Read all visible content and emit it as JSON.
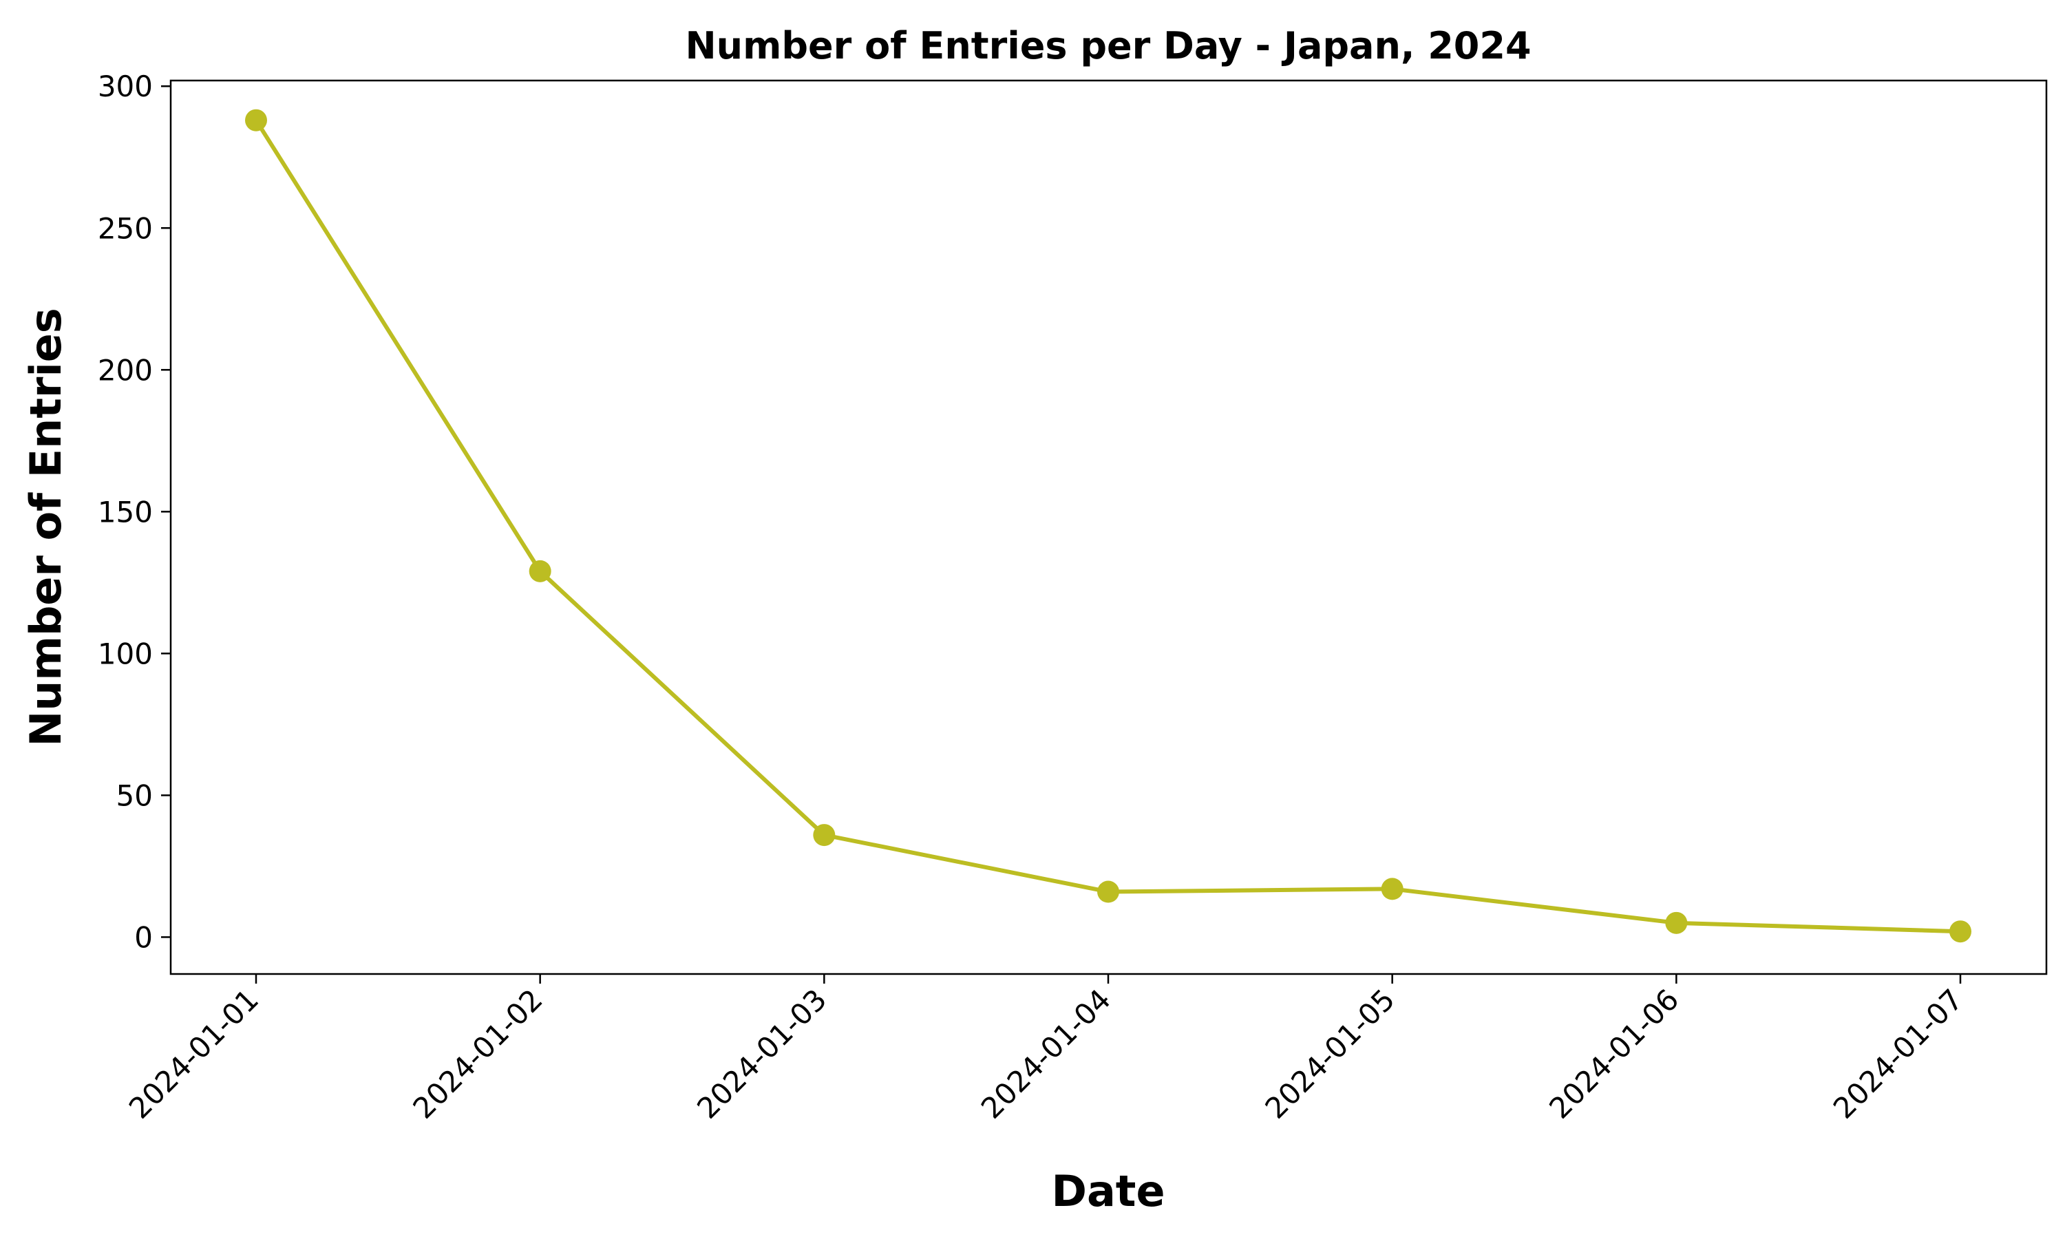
{
  "chart_data": {
    "type": "line",
    "title": "Number of Entries per Day - Japan, 2024",
    "xlabel": "Date",
    "ylabel": "Number of Entries",
    "x": [
      "2024-01-01",
      "2024-01-02",
      "2024-01-03",
      "2024-01-04",
      "2024-01-05",
      "2024-01-06",
      "2024-01-07"
    ],
    "series": [
      {
        "values": [
          288,
          129,
          36,
          16,
          17,
          5,
          2
        ],
        "color": "#bcbd22",
        "marker": "circle"
      }
    ],
    "yticks": [
      0,
      50,
      100,
      150,
      200,
      250,
      300
    ],
    "ylim": [
      -13,
      302
    ],
    "grid": false,
    "legend": "none"
  }
}
